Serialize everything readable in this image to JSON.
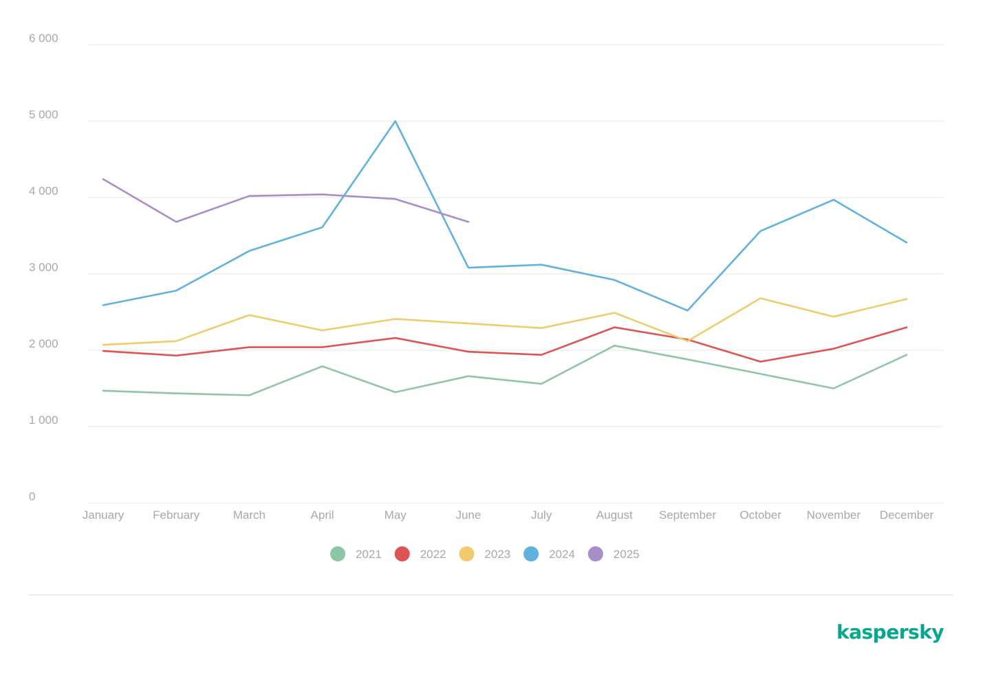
{
  "colors": {
    "2021": "#8ec5a6",
    "2022": "#de5353",
    "2023": "#efcb6b",
    "2024": "#5fb1e0",
    "2025": "#a98dc8",
    "brand": "#00a88e",
    "grid": "#e6e6e6",
    "tick_text": "#a8a8a8"
  },
  "brand": {
    "logo_text": "kaspersky"
  },
  "chart_data": {
    "type": "line",
    "title": "",
    "xlabel": "",
    "ylabel": "",
    "categories": [
      "January",
      "February",
      "March",
      "April",
      "May",
      "June",
      "July",
      "August",
      "September",
      "October",
      "November",
      "December"
    ],
    "ylim": [
      0,
      6000
    ],
    "yticks": [
      0,
      1000,
      2000,
      3000,
      4000,
      5000,
      6000
    ],
    "ytick_labels": [
      "0",
      "1 000",
      "2 000",
      "3 000",
      "4 000",
      "5 000",
      "6 000"
    ],
    "grid": true,
    "legend_position": "bottom-center",
    "series": [
      {
        "name": "2021",
        "values": [
          1470,
          1435,
          1410,
          1790,
          1450,
          1660,
          1560,
          2060,
          1880,
          1690,
          1500,
          1940
        ]
      },
      {
        "name": "2022",
        "values": [
          1990,
          1930,
          2040,
          2040,
          2160,
          1980,
          1940,
          2300,
          2140,
          1850,
          2020,
          2300
        ]
      },
      {
        "name": "2023",
        "values": [
          2070,
          2120,
          2460,
          2260,
          2410,
          2350,
          2290,
          2490,
          2120,
          2680,
          2440,
          2670
        ]
      },
      {
        "name": "2024",
        "values": [
          2590,
          2780,
          3300,
          3610,
          5000,
          3080,
          3120,
          2920,
          2520,
          3560,
          3970,
          3410
        ]
      },
      {
        "name": "2025",
        "values": [
          4240,
          3680,
          4020,
          4040,
          3980,
          3680,
          null,
          null,
          null,
          null,
          null,
          null
        ]
      }
    ]
  }
}
